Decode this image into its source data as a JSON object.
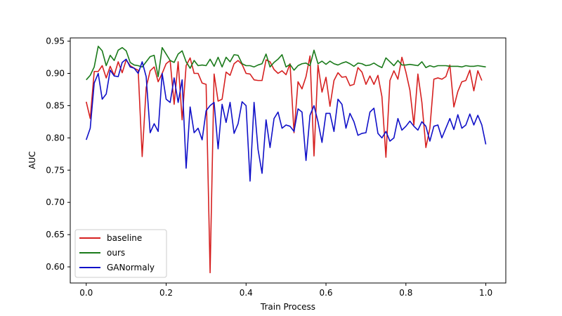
{
  "chart_data": {
    "type": "line",
    "title": "",
    "xlabel": "Train Process",
    "ylabel": "AUC",
    "xlim": [
      -0.04,
      1.05
    ],
    "ylim": [
      0.575,
      0.955
    ],
    "xticks": [
      0.0,
      0.2,
      0.4,
      0.6,
      0.8,
      1.0
    ],
    "xtick_labels": [
      "0.0",
      "0.2",
      "0.4",
      "0.6",
      "0.8",
      "1.0"
    ],
    "yticks": [
      0.6,
      0.65,
      0.7,
      0.75,
      0.8,
      0.85,
      0.9,
      0.95
    ],
    "ytick_labels": [
      "0.60",
      "0.65",
      "0.70",
      "0.75",
      "0.80",
      "0.85",
      "0.90",
      "0.95"
    ],
    "grid": false,
    "legend_position": "lower-left",
    "series": [
      {
        "name": "baseline",
        "color": "#d62020",
        "points": [
          [
            0.0,
            0.856
          ],
          [
            0.01,
            0.83
          ],
          [
            0.02,
            0.903
          ],
          [
            0.03,
            0.903
          ],
          [
            0.04,
            0.912
          ],
          [
            0.05,
            0.893
          ],
          [
            0.06,
            0.911
          ],
          [
            0.07,
            0.897
          ],
          [
            0.08,
            0.918
          ],
          [
            0.09,
            0.901
          ],
          [
            0.1,
            0.921
          ],
          [
            0.11,
            0.912
          ],
          [
            0.12,
            0.908
          ],
          [
            0.13,
            0.905
          ],
          [
            0.14,
            0.771
          ],
          [
            0.15,
            0.878
          ],
          [
            0.16,
            0.904
          ],
          [
            0.17,
            0.91
          ],
          [
            0.18,
            0.887
          ],
          [
            0.19,
            0.9
          ],
          [
            0.2,
            0.915
          ],
          [
            0.21,
            0.92
          ],
          [
            0.22,
            0.852
          ],
          [
            0.23,
            0.918
          ],
          [
            0.24,
            0.828
          ],
          [
            0.25,
            0.912
          ],
          [
            0.26,
            0.924
          ],
          [
            0.27,
            0.9
          ],
          [
            0.28,
            0.9
          ],
          [
            0.29,
            0.885
          ],
          [
            0.3,
            0.883
          ],
          [
            0.31,
            0.591
          ],
          [
            0.32,
            0.899
          ],
          [
            0.33,
            0.857
          ],
          [
            0.34,
            0.86
          ],
          [
            0.35,
            0.902
          ],
          [
            0.36,
            0.897
          ],
          [
            0.37,
            0.915
          ],
          [
            0.38,
            0.92
          ],
          [
            0.39,
            0.914
          ],
          [
            0.4,
            0.9
          ],
          [
            0.41,
            0.899
          ],
          [
            0.42,
            0.89
          ],
          [
            0.43,
            0.889
          ],
          [
            0.44,
            0.889
          ],
          [
            0.45,
            0.921
          ],
          [
            0.46,
            0.918
          ],
          [
            0.47,
            0.906
          ],
          [
            0.48,
            0.9
          ],
          [
            0.49,
            0.904
          ],
          [
            0.5,
            0.898
          ],
          [
            0.51,
            0.915
          ],
          [
            0.52,
            0.808
          ],
          [
            0.53,
            0.887
          ],
          [
            0.54,
            0.876
          ],
          [
            0.55,
            0.895
          ],
          [
            0.56,
            0.927
          ],
          [
            0.57,
            0.772
          ],
          [
            0.58,
            0.913
          ],
          [
            0.59,
            0.871
          ],
          [
            0.6,
            0.894
          ],
          [
            0.61,
            0.849
          ],
          [
            0.62,
            0.889
          ],
          [
            0.63,
            0.901
          ],
          [
            0.64,
            0.894
          ],
          [
            0.65,
            0.895
          ],
          [
            0.66,
            0.881
          ],
          [
            0.67,
            0.883
          ],
          [
            0.68,
            0.909
          ],
          [
            0.69,
            0.902
          ],
          [
            0.7,
            0.883
          ],
          [
            0.71,
            0.896
          ],
          [
            0.72,
            0.883
          ],
          [
            0.73,
            0.897
          ],
          [
            0.74,
            0.864
          ],
          [
            0.75,
            0.77
          ],
          [
            0.76,
            0.889
          ],
          [
            0.77,
            0.904
          ],
          [
            0.78,
            0.891
          ],
          [
            0.79,
            0.925
          ],
          [
            0.8,
            0.902
          ],
          [
            0.81,
            0.874
          ],
          [
            0.82,
            0.82
          ],
          [
            0.83,
            0.899
          ],
          [
            0.84,
            0.855
          ],
          [
            0.85,
            0.785
          ],
          [
            0.86,
            0.815
          ],
          [
            0.87,
            0.891
          ],
          [
            0.88,
            0.893
          ],
          [
            0.89,
            0.891
          ],
          [
            0.9,
            0.895
          ],
          [
            0.91,
            0.913
          ],
          [
            0.92,
            0.848
          ],
          [
            0.93,
            0.872
          ],
          [
            0.94,
            0.887
          ],
          [
            0.95,
            0.889
          ],
          [
            0.96,
            0.905
          ],
          [
            0.97,
            0.873
          ],
          [
            0.98,
            0.904
          ],
          [
            0.99,
            0.889
          ]
        ]
      },
      {
        "name": "ours",
        "color": "#1a7a1a",
        "points": [
          [
            0.0,
            0.89
          ],
          [
            0.01,
            0.897
          ],
          [
            0.02,
            0.91
          ],
          [
            0.03,
            0.942
          ],
          [
            0.04,
            0.935
          ],
          [
            0.05,
            0.912
          ],
          [
            0.06,
            0.928
          ],
          [
            0.07,
            0.92
          ],
          [
            0.08,
            0.936
          ],
          [
            0.09,
            0.94
          ],
          [
            0.1,
            0.935
          ],
          [
            0.11,
            0.917
          ],
          [
            0.12,
            0.913
          ],
          [
            0.13,
            0.912
          ],
          [
            0.14,
            0.91
          ],
          [
            0.15,
            0.918
          ],
          [
            0.16,
            0.926
          ],
          [
            0.17,
            0.928
          ],
          [
            0.18,
            0.895
          ],
          [
            0.19,
            0.94
          ],
          [
            0.2,
            0.93
          ],
          [
            0.21,
            0.92
          ],
          [
            0.22,
            0.917
          ],
          [
            0.23,
            0.93
          ],
          [
            0.24,
            0.935
          ],
          [
            0.25,
            0.918
          ],
          [
            0.26,
            0.908
          ],
          [
            0.27,
            0.92
          ],
          [
            0.28,
            0.912
          ],
          [
            0.29,
            0.913
          ],
          [
            0.3,
            0.912
          ],
          [
            0.31,
            0.922
          ],
          [
            0.32,
            0.911
          ],
          [
            0.33,
            0.925
          ],
          [
            0.34,
            0.91
          ],
          [
            0.35,
            0.925
          ],
          [
            0.36,
            0.918
          ],
          [
            0.37,
            0.929
          ],
          [
            0.38,
            0.928
          ],
          [
            0.39,
            0.915
          ],
          [
            0.4,
            0.912
          ],
          [
            0.41,
            0.912
          ],
          [
            0.42,
            0.91
          ],
          [
            0.43,
            0.913
          ],
          [
            0.44,
            0.915
          ],
          [
            0.45,
            0.93
          ],
          [
            0.46,
            0.91
          ],
          [
            0.47,
            0.917
          ],
          [
            0.48,
            0.922
          ],
          [
            0.49,
            0.929
          ],
          [
            0.5,
            0.91
          ],
          [
            0.51,
            0.914
          ],
          [
            0.52,
            0.905
          ],
          [
            0.53,
            0.912
          ],
          [
            0.54,
            0.915
          ],
          [
            0.55,
            0.916
          ],
          [
            0.56,
            0.912
          ],
          [
            0.57,
            0.936
          ],
          [
            0.58,
            0.915
          ],
          [
            0.59,
            0.919
          ],
          [
            0.6,
            0.914
          ],
          [
            0.61,
            0.919
          ],
          [
            0.62,
            0.915
          ],
          [
            0.63,
            0.913
          ],
          [
            0.64,
            0.916
          ],
          [
            0.65,
            0.918
          ],
          [
            0.66,
            0.915
          ],
          [
            0.67,
            0.911
          ],
          [
            0.68,
            0.916
          ],
          [
            0.69,
            0.915
          ],
          [
            0.7,
            0.912
          ],
          [
            0.71,
            0.913
          ],
          [
            0.72,
            0.916
          ],
          [
            0.73,
            0.912
          ],
          [
            0.74,
            0.909
          ],
          [
            0.75,
            0.924
          ],
          [
            0.76,
            0.918
          ],
          [
            0.77,
            0.912
          ],
          [
            0.78,
            0.92
          ],
          [
            0.79,
            0.913
          ],
          [
            0.8,
            0.913
          ],
          [
            0.81,
            0.914
          ],
          [
            0.82,
            0.913
          ],
          [
            0.83,
            0.912
          ],
          [
            0.84,
            0.918
          ],
          [
            0.85,
            0.909
          ],
          [
            0.86,
            0.912
          ],
          [
            0.87,
            0.91
          ],
          [
            0.88,
            0.912
          ],
          [
            0.89,
            0.912
          ],
          [
            0.9,
            0.912
          ],
          [
            0.91,
            0.911
          ],
          [
            0.92,
            0.911
          ],
          [
            0.93,
            0.911
          ],
          [
            0.94,
            0.91
          ],
          [
            0.95,
            0.912
          ],
          [
            0.96,
            0.911
          ],
          [
            0.97,
            0.911
          ],
          [
            0.98,
            0.912
          ],
          [
            0.99,
            0.911
          ],
          [
            1.0,
            0.91
          ]
        ]
      },
      {
        "name": "GANormaly",
        "color": "#1010c8",
        "points": [
          [
            0.0,
            0.797
          ],
          [
            0.01,
            0.815
          ],
          [
            0.02,
            0.885
          ],
          [
            0.03,
            0.9
          ],
          [
            0.04,
            0.86
          ],
          [
            0.05,
            0.868
          ],
          [
            0.06,
            0.905
          ],
          [
            0.07,
            0.896
          ],
          [
            0.08,
            0.895
          ],
          [
            0.09,
            0.917
          ],
          [
            0.1,
            0.922
          ],
          [
            0.11,
            0.91
          ],
          [
            0.12,
            0.908
          ],
          [
            0.13,
            0.9
          ],
          [
            0.14,
            0.918
          ],
          [
            0.15,
            0.895
          ],
          [
            0.16,
            0.808
          ],
          [
            0.17,
            0.822
          ],
          [
            0.18,
            0.81
          ],
          [
            0.19,
            0.9
          ],
          [
            0.2,
            0.86
          ],
          [
            0.21,
            0.855
          ],
          [
            0.22,
            0.893
          ],
          [
            0.23,
            0.855
          ],
          [
            0.24,
            0.89
          ],
          [
            0.25,
            0.753
          ],
          [
            0.26,
            0.848
          ],
          [
            0.27,
            0.808
          ],
          [
            0.28,
            0.815
          ],
          [
            0.29,
            0.797
          ],
          [
            0.3,
            0.842
          ],
          [
            0.31,
            0.85
          ],
          [
            0.32,
            0.855
          ],
          [
            0.33,
            0.783
          ],
          [
            0.34,
            0.852
          ],
          [
            0.35,
            0.824
          ],
          [
            0.36,
            0.855
          ],
          [
            0.37,
            0.807
          ],
          [
            0.38,
            0.822
          ],
          [
            0.39,
            0.856
          ],
          [
            0.4,
            0.85
          ],
          [
            0.41,
            0.733
          ],
          [
            0.42,
            0.855
          ],
          [
            0.43,
            0.782
          ],
          [
            0.44,
            0.745
          ],
          [
            0.45,
            0.828
          ],
          [
            0.46,
            0.785
          ],
          [
            0.47,
            0.83
          ],
          [
            0.48,
            0.84
          ],
          [
            0.49,
            0.815
          ],
          [
            0.5,
            0.82
          ],
          [
            0.51,
            0.818
          ],
          [
            0.52,
            0.81
          ],
          [
            0.53,
            0.845
          ],
          [
            0.54,
            0.84
          ],
          [
            0.55,
            0.765
          ],
          [
            0.56,
            0.835
          ],
          [
            0.57,
            0.85
          ],
          [
            0.58,
            0.825
          ],
          [
            0.59,
            0.793
          ],
          [
            0.6,
            0.838
          ],
          [
            0.61,
            0.838
          ],
          [
            0.62,
            0.81
          ],
          [
            0.63,
            0.86
          ],
          [
            0.64,
            0.852
          ],
          [
            0.65,
            0.815
          ],
          [
            0.66,
            0.838
          ],
          [
            0.67,
            0.825
          ],
          [
            0.68,
            0.804
          ],
          [
            0.69,
            0.807
          ],
          [
            0.7,
            0.808
          ],
          [
            0.71,
            0.84
          ],
          [
            0.72,
            0.846
          ],
          [
            0.73,
            0.807
          ],
          [
            0.74,
            0.8
          ],
          [
            0.75,
            0.81
          ],
          [
            0.76,
            0.795
          ],
          [
            0.77,
            0.8
          ],
          [
            0.78,
            0.83
          ],
          [
            0.79,
            0.812
          ],
          [
            0.8,
            0.818
          ],
          [
            0.81,
            0.826
          ],
          [
            0.82,
            0.818
          ],
          [
            0.83,
            0.812
          ],
          [
            0.84,
            0.825
          ],
          [
            0.85,
            0.818
          ],
          [
            0.86,
            0.795
          ],
          [
            0.87,
            0.818
          ],
          [
            0.88,
            0.82
          ],
          [
            0.89,
            0.8
          ],
          [
            0.9,
            0.815
          ],
          [
            0.91,
            0.83
          ],
          [
            0.92,
            0.813
          ],
          [
            0.93,
            0.836
          ],
          [
            0.94,
            0.815
          ],
          [
            0.95,
            0.82
          ],
          [
            0.96,
            0.837
          ],
          [
            0.97,
            0.82
          ],
          [
            0.98,
            0.835
          ],
          [
            0.99,
            0.82
          ],
          [
            1.0,
            0.79
          ]
        ]
      }
    ]
  }
}
